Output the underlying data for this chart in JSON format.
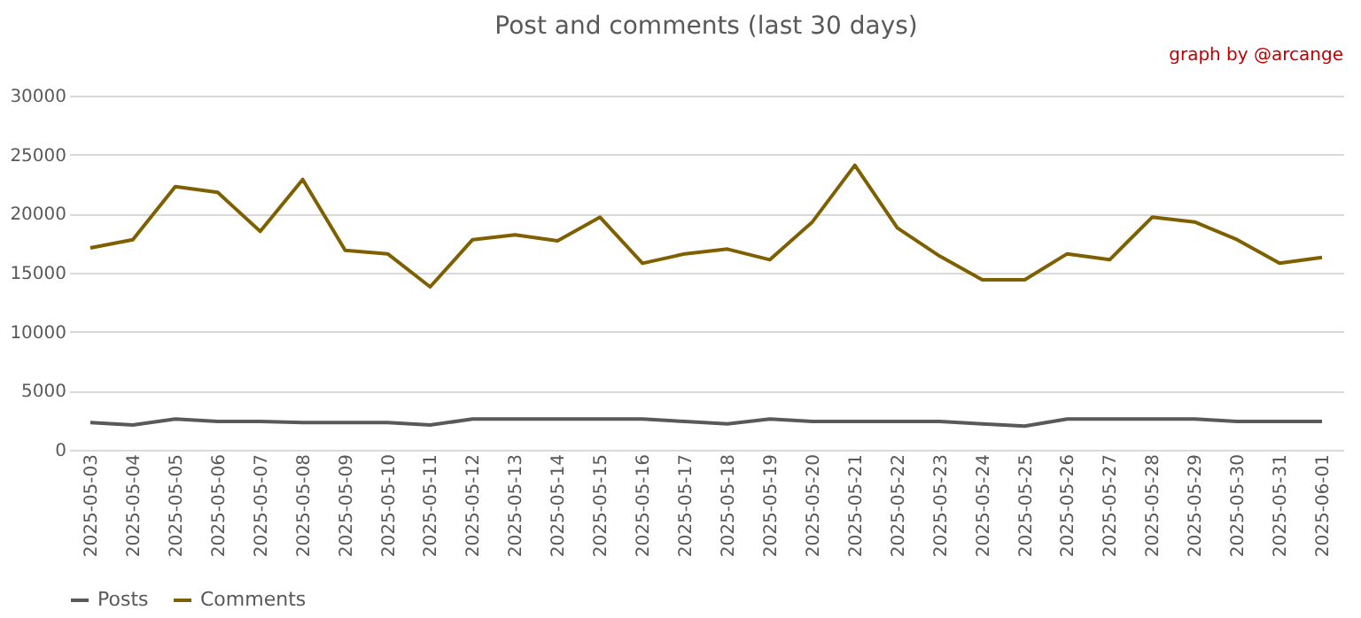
{
  "chart_data": {
    "type": "line",
    "title": "Post and comments (last 30 days)",
    "annotations": [
      "graph by @arcange"
    ],
    "categories": [
      "2025-05-03",
      "2025-05-04",
      "2025-05-05",
      "2025-05-06",
      "2025-05-07",
      "2025-05-08",
      "2025-05-09",
      "2025-05-10",
      "2025-05-11",
      "2025-05-12",
      "2025-05-13",
      "2025-05-14",
      "2025-05-15",
      "2025-05-16",
      "2025-05-17",
      "2025-05-18",
      "2025-05-19",
      "2025-05-20",
      "2025-05-21",
      "2025-05-22",
      "2025-05-23",
      "2025-05-24",
      "2025-05-25",
      "2025-05-26",
      "2025-05-27",
      "2025-05-28",
      "2025-05-29",
      "2025-05-30",
      "2025-05-31",
      "2025-06-01"
    ],
    "series": [
      {
        "name": "Posts",
        "color": "#595959",
        "values": [
          2300,
          2100,
          2600,
          2400,
          2400,
          2300,
          2300,
          2300,
          2100,
          2600,
          2600,
          2600,
          2600,
          2600,
          2400,
          2200,
          2600,
          2400,
          2400,
          2400,
          2400,
          2200,
          2000,
          2600,
          2600,
          2600,
          2600,
          2400,
          2400,
          2400
        ]
      },
      {
        "name": "Comments",
        "color": "#7f6000",
        "values": [
          17100,
          17800,
          22300,
          21800,
          18500,
          22900,
          16900,
          16600,
          13800,
          17800,
          18200,
          17700,
          19700,
          15800,
          16600,
          17000,
          16100,
          19300,
          24100,
          18800,
          16400,
          14400,
          14400,
          16600,
          16100,
          19700,
          19300,
          17800,
          15800,
          16300
        ]
      }
    ],
    "ylim": [
      0,
      30000
    ],
    "yticks": [
      0,
      5000,
      10000,
      15000,
      20000,
      25000,
      30000
    ],
    "grid": "y",
    "legend": "bottom",
    "marker": "none",
    "line_style": "solid"
  }
}
